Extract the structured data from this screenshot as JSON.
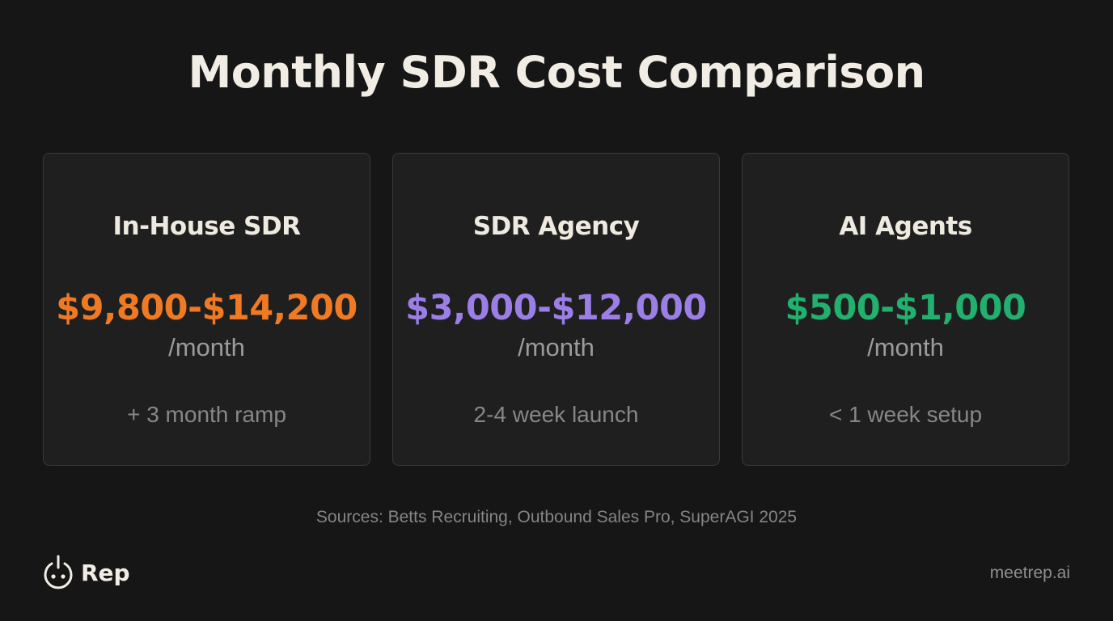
{
  "title": "Monthly SDR Cost Comparison",
  "cards": [
    {
      "title": "In-House SDR",
      "price": "$9,800-$14,200",
      "period": "/month",
      "note": "+ 3 month ramp",
      "color": "#f07a24"
    },
    {
      "title": "SDR Agency",
      "price": "$3,000-$12,000",
      "period": "/month",
      "note": "2-4 week launch",
      "color": "#9b7ee6"
    },
    {
      "title": "AI Agents",
      "price": "$500-$1,000",
      "period": "/month",
      "note": "< 1 week setup",
      "color": "#22b06e"
    }
  ],
  "sources": "Sources: Betts Recruiting, Outbound Sales Pro, SuperAGI 2025",
  "brand": {
    "name": "Rep",
    "icon": "power-face-icon"
  },
  "site": "meetrep.ai"
}
